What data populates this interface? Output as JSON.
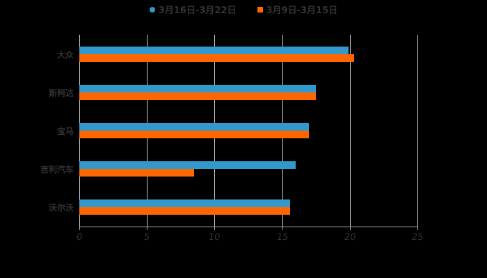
{
  "chart_data": {
    "type": "bar",
    "orientation": "horizontal",
    "title": "",
    "categories": [
      "大众",
      "斯柯达",
      "宝马",
      "吉利汽车",
      "沃尔沃"
    ],
    "series": [
      {
        "name": "3月16日-3月22日",
        "color": "#3399cc",
        "values": [
          19.9,
          17.5,
          17.0,
          16.0,
          15.6
        ]
      },
      {
        "name": "3月9日-3月15日",
        "color": "#ff6600",
        "values": [
          20.3,
          17.5,
          17.0,
          8.5,
          15.6
        ]
      }
    ],
    "xlabel": "",
    "ylabel": "",
    "xlim": [
      0,
      25
    ],
    "xticks": [
      "0",
      "5",
      "10",
      "15",
      "20",
      "25"
    ],
    "grid": true,
    "legend_position": "top"
  },
  "legend": {
    "series1": "3月16日-3月22日",
    "series2": "3月9日-3月15日"
  }
}
